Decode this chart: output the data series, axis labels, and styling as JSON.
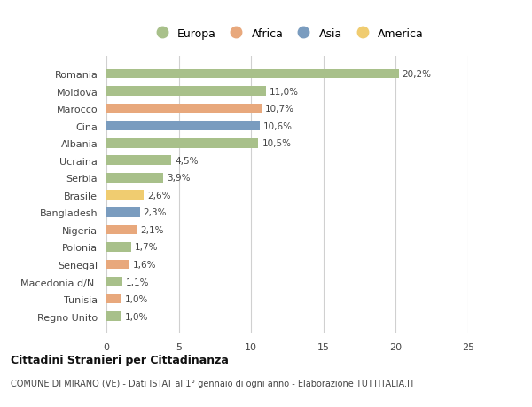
{
  "countries": [
    "Romania",
    "Moldova",
    "Marocco",
    "Cina",
    "Albania",
    "Ucraina",
    "Serbia",
    "Brasile",
    "Bangladesh",
    "Nigeria",
    "Polonia",
    "Senegal",
    "Macedonia d/N.",
    "Tunisia",
    "Regno Unito"
  ],
  "values": [
    20.2,
    11.0,
    10.7,
    10.6,
    10.5,
    4.5,
    3.9,
    2.6,
    2.3,
    2.1,
    1.7,
    1.6,
    1.1,
    1.0,
    1.0
  ],
  "labels": [
    "20,2%",
    "11,0%",
    "10,7%",
    "10,6%",
    "10,5%",
    "4,5%",
    "3,9%",
    "2,6%",
    "2,3%",
    "2,1%",
    "1,7%",
    "1,6%",
    "1,1%",
    "1,0%",
    "1,0%"
  ],
  "categories": [
    "Europa",
    "Europa",
    "Africa",
    "Asia",
    "Europa",
    "Europa",
    "Europa",
    "America",
    "Asia",
    "Africa",
    "Europa",
    "Africa",
    "Europa",
    "Africa",
    "Europa"
  ],
  "colors": {
    "Europa": "#a8c08a",
    "Africa": "#e8a87c",
    "Asia": "#7a9cbf",
    "America": "#f0cc70"
  },
  "legend_order": [
    "Europa",
    "Africa",
    "Asia",
    "America"
  ],
  "title": "Cittadini Stranieri per Cittadinanza",
  "subtitle": "COMUNE DI MIRANO (VE) - Dati ISTAT al 1° gennaio di ogni anno - Elaborazione TUTTITALIA.IT",
  "xlim": [
    0,
    25
  ],
  "xticks": [
    0,
    5,
    10,
    15,
    20,
    25
  ],
  "background_color": "#ffffff",
  "grid_color": "#d0d0d0"
}
